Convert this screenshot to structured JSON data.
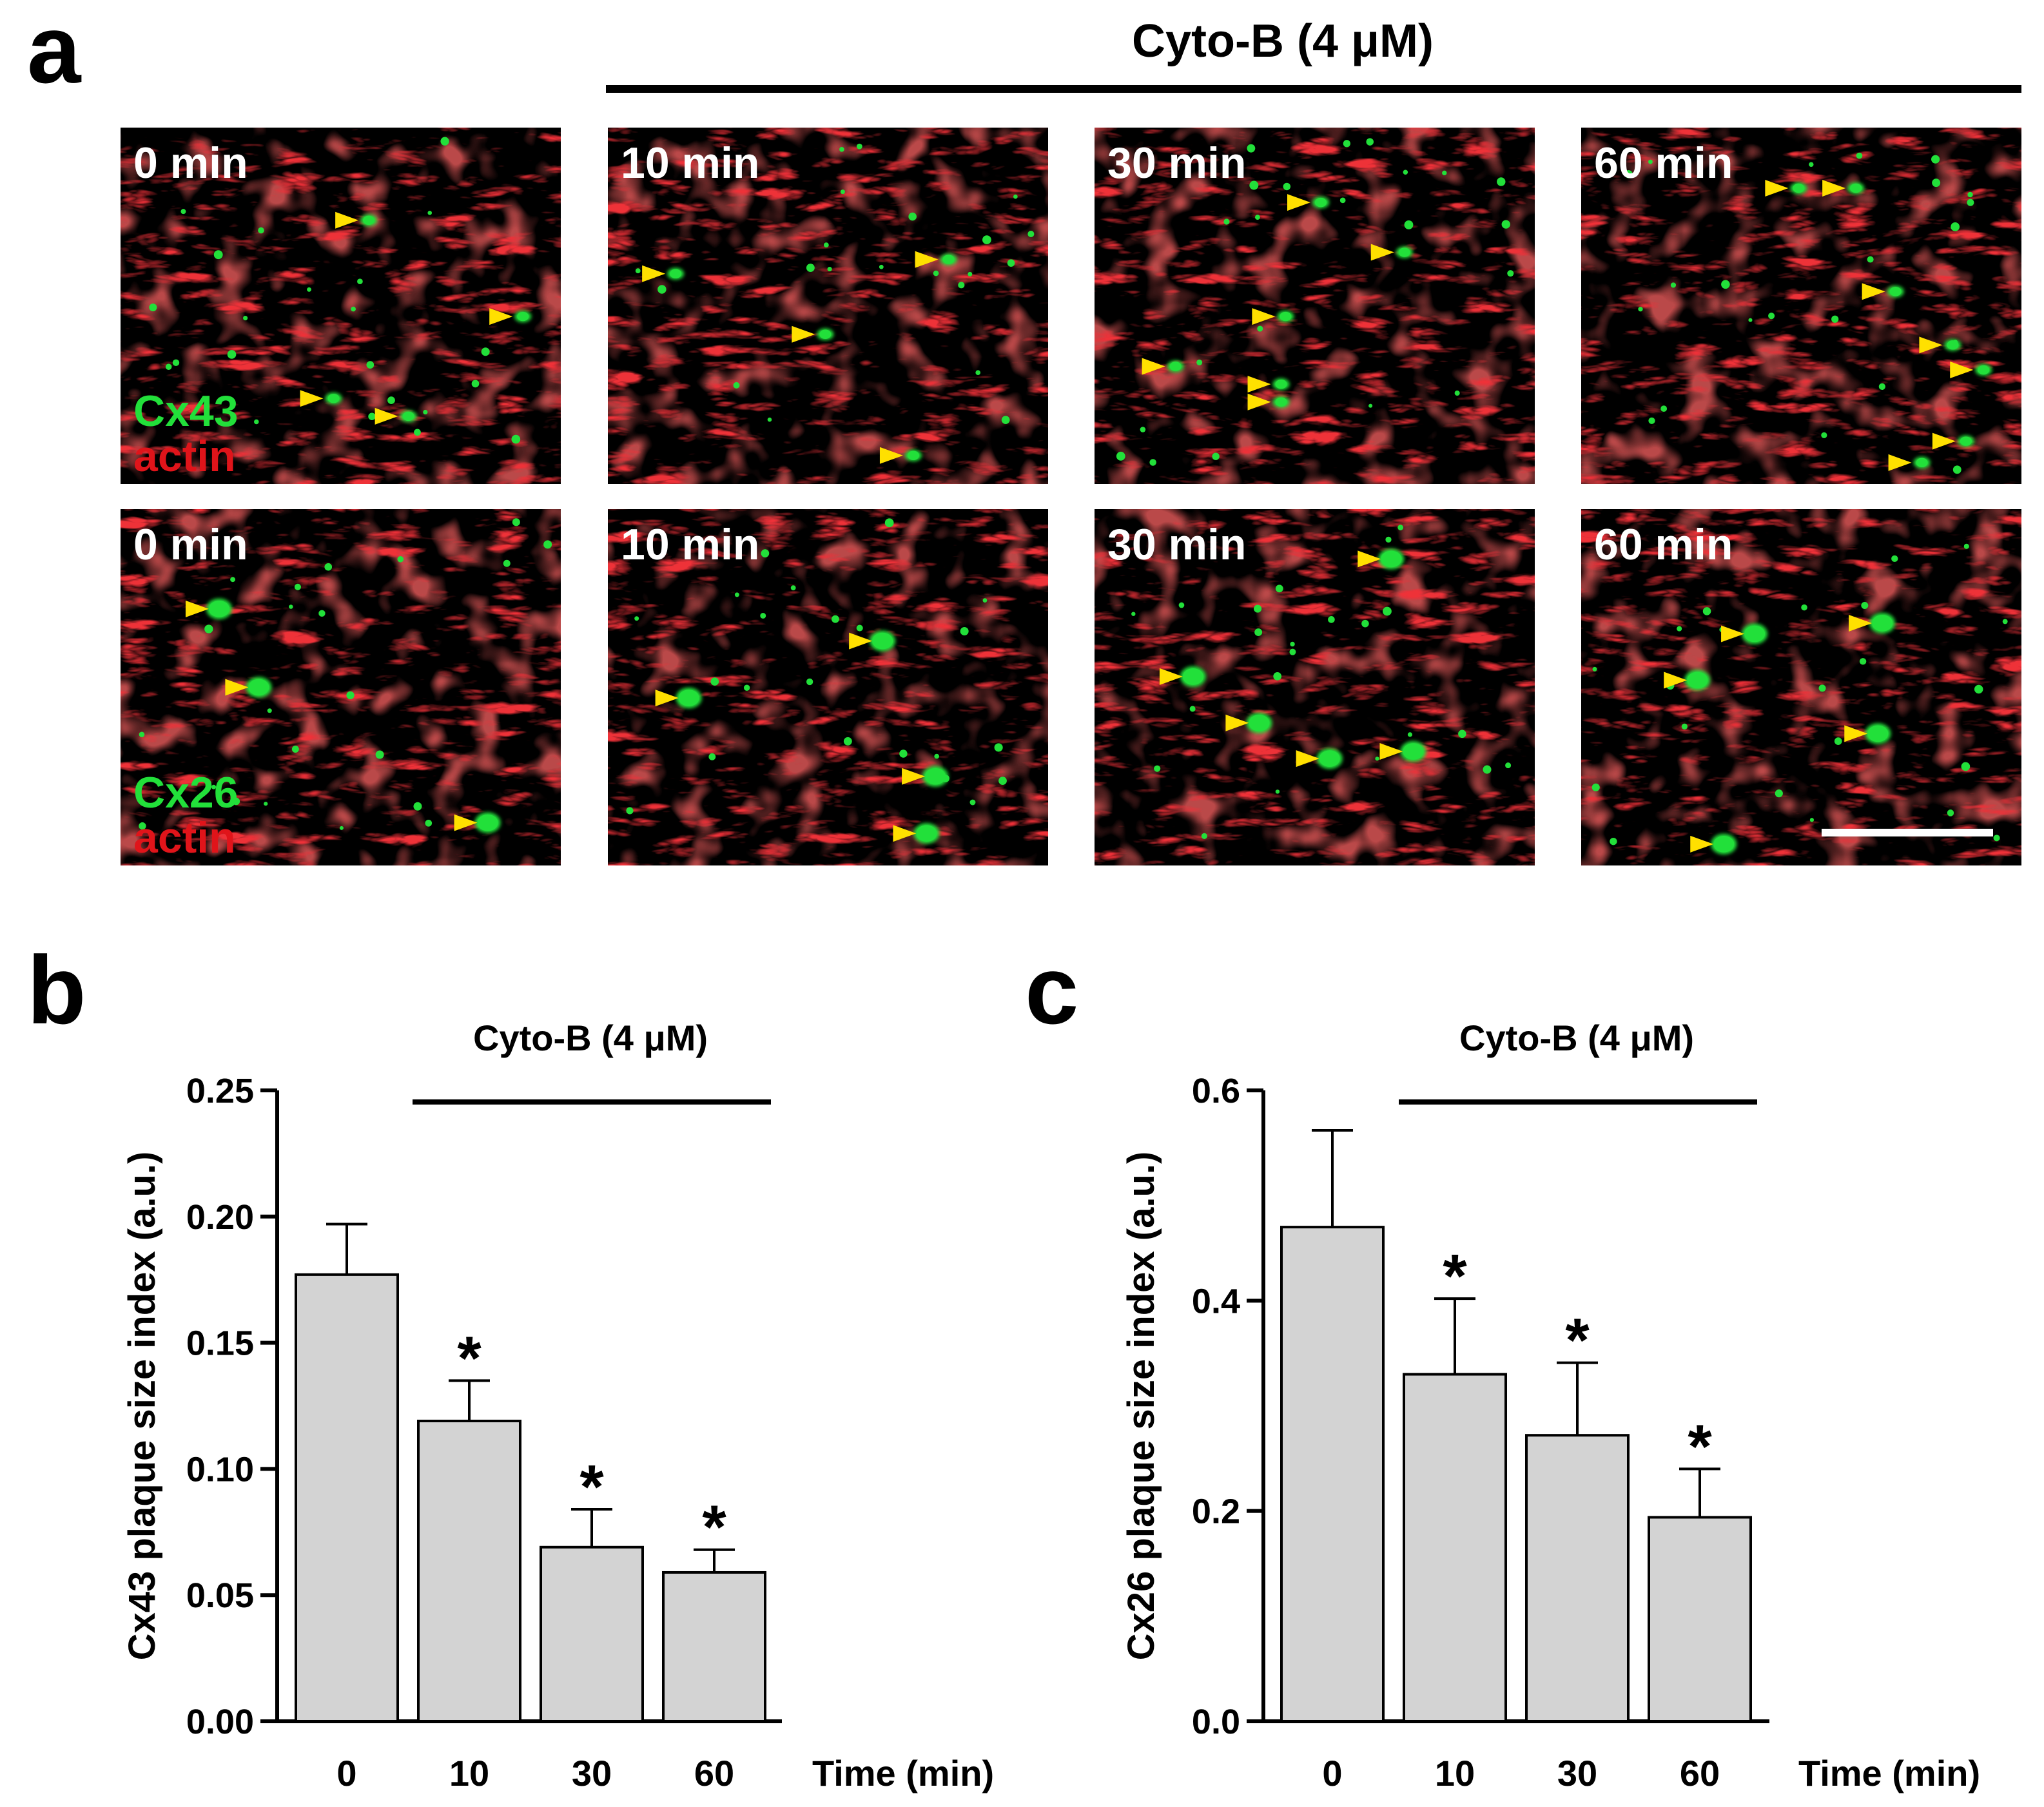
{
  "panel_a": {
    "label": "a",
    "treatment_label": "Cyto-B (4 μM)",
    "rows": [
      {
        "marker_label": "Cx43",
        "stain_label": "actin",
        "tiles": [
          {
            "time_label": "0 min",
            "markers": [
              [
                0.52,
                0.26
              ],
              [
                0.87,
                0.53
              ],
              [
                0.44,
                0.76
              ],
              [
                0.61,
                0.81
              ]
            ]
          },
          {
            "time_label": "10 min",
            "markers": [
              [
                0.11,
                0.41
              ],
              [
                0.73,
                0.37
              ],
              [
                0.45,
                0.58
              ],
              [
                0.65,
                0.92
              ]
            ]
          },
          {
            "time_label": "30 min",
            "markers": [
              [
                0.47,
                0.21
              ],
              [
                0.66,
                0.35
              ],
              [
                0.39,
                0.53
              ],
              [
                0.14,
                0.67
              ],
              [
                0.38,
                0.72
              ],
              [
                0.38,
                0.77
              ]
            ]
          },
          {
            "time_label": "60 min",
            "markers": [
              [
                0.45,
                0.17
              ],
              [
                0.58,
                0.17
              ],
              [
                0.67,
                0.46
              ],
              [
                0.8,
                0.61
              ],
              [
                0.87,
                0.68
              ],
              [
                0.83,
                0.88
              ],
              [
                0.73,
                0.94
              ]
            ]
          }
        ]
      },
      {
        "marker_label": "Cx26",
        "stain_label": "actin",
        "tiles": [
          {
            "time_label": "0 min",
            "markers": [
              [
                0.18,
                0.28
              ],
              [
                0.27,
                0.5
              ],
              [
                0.79,
                0.88
              ]
            ]
          },
          {
            "time_label": "10 min",
            "markers": [
              [
                0.58,
                0.37
              ],
              [
                0.14,
                0.53
              ],
              [
                0.7,
                0.75
              ],
              [
                0.68,
                0.91
              ]
            ]
          },
          {
            "time_label": "30 min",
            "markers": [
              [
                0.63,
                0.14
              ],
              [
                0.18,
                0.47
              ],
              [
                0.33,
                0.6
              ],
              [
                0.49,
                0.7
              ],
              [
                0.68,
                0.68
              ]
            ]
          },
          {
            "time_label": "60 min",
            "markers": [
              [
                0.35,
                0.35
              ],
              [
                0.64,
                0.32
              ],
              [
                0.22,
                0.48
              ],
              [
                0.63,
                0.63
              ],
              [
                0.28,
                0.94
              ]
            ]
          }
        ]
      }
    ]
  },
  "chart_data": [
    {
      "type": "bar",
      "panel_label": "b",
      "treatment_label": "Cyto-B (4 μM)",
      "categories": [
        "0",
        "10",
        "30",
        "60"
      ],
      "values": [
        0.177,
        0.119,
        0.069,
        0.059
      ],
      "errors": [
        0.02,
        0.016,
        0.015,
        0.009
      ],
      "significant": [
        false,
        true,
        true,
        true
      ],
      "significance_symbol": "*",
      "ylabel": "Cx43 plaque size index (a.u.)",
      "xlabel": "Time (min)",
      "ylim": [
        0,
        0.25
      ],
      "yticks": [
        "0.00",
        "0.05",
        "0.10",
        "0.15",
        "0.20",
        "0.25"
      ],
      "grid": false
    },
    {
      "type": "bar",
      "panel_label": "c",
      "treatment_label": "Cyto-B (4 μM)",
      "categories": [
        "0",
        "10",
        "30",
        "60"
      ],
      "values": [
        0.47,
        0.33,
        0.272,
        0.194
      ],
      "errors": [
        0.092,
        0.072,
        0.069,
        0.046
      ],
      "significant": [
        false,
        true,
        true,
        true
      ],
      "significance_symbol": "*",
      "ylabel": "Cx26 plaque size index (a.u.)",
      "xlabel": "Time (min)",
      "ylim": [
        0,
        0.6
      ],
      "yticks": [
        "0.0",
        "0.2",
        "0.4",
        "0.6"
      ],
      "grid": false
    }
  ],
  "colors": {
    "bar_fill": "#d3d3d3",
    "actin": "#e0141a",
    "connexin": "#22e03a",
    "arrowhead": "#ffe000",
    "tile_label": "#ffffff"
  }
}
